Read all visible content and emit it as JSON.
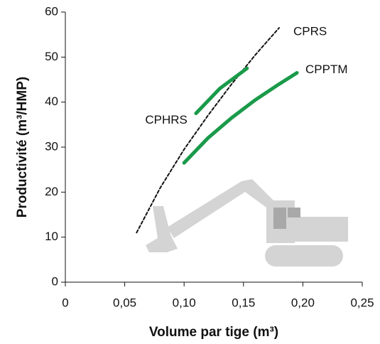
{
  "chart_data": {
    "type": "line",
    "x_label": "Volume par tige (m³)",
    "y_label": "Productivité (m³/HMP)",
    "xlim": [
      0,
      0.25
    ],
    "xticks": [
      0,
      {
        "value": 0.05,
        "label": "0,05"
      },
      {
        "value": 0.1,
        "label": "0,10"
      },
      {
        "value": 0.15,
        "label": "0,15"
      },
      {
        "value": 0.2,
        "label": "0,20"
      },
      {
        "value": 0.25,
        "label": "0,25"
      }
    ],
    "ylim": [
      0,
      60
    ],
    "yticks": [
      0,
      10,
      20,
      30,
      40,
      50,
      60
    ],
    "series": [
      {
        "name": "CPRS",
        "color": "#111111",
        "dashed": true,
        "x": [
          0.06,
          0.08,
          0.1,
          0.12,
          0.14,
          0.16,
          0.18
        ],
        "values": [
          11,
          21,
          29.5,
          37,
          44,
          50.5,
          56.5
        ]
      },
      {
        "name": "CPHRS",
        "color": "#1a9a4a",
        "dashed": false,
        "x": [
          0.11,
          0.13,
          0.153
        ],
        "values": [
          37.5,
          43,
          47.5
        ]
      },
      {
        "name": "CPPTM",
        "color": "#1a9a4a",
        "dashed": false,
        "x": [
          0.1,
          0.12,
          0.14,
          0.16,
          0.18,
          0.195
        ],
        "values": [
          26.5,
          32,
          36.5,
          40.5,
          44,
          46.5
        ]
      }
    ]
  }
}
